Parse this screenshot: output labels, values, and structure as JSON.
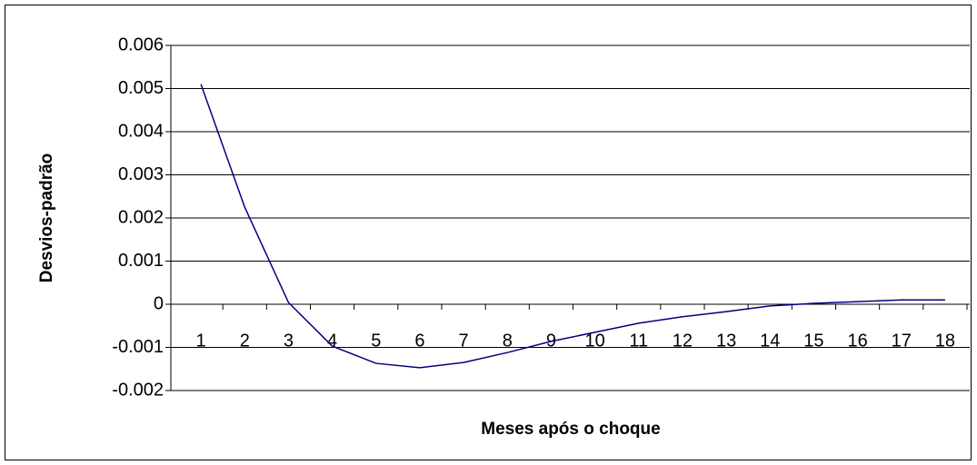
{
  "chart_data": {
    "type": "line",
    "x_label": "Meses após o choque",
    "y_label": "Desvios-padrão",
    "categories": [
      "1",
      "2",
      "3",
      "4",
      "5",
      "6",
      "7",
      "8",
      "9",
      "10",
      "11",
      "12",
      "13",
      "14",
      "15",
      "16",
      "17",
      "18"
    ],
    "values": [
      0.0051,
      0.00225,
      4e-05,
      -0.00097,
      -0.00137,
      -0.00147,
      -0.00135,
      -0.00112,
      -0.00086,
      -0.00065,
      -0.00044,
      -0.00029,
      -0.00017,
      -4e-05,
      2e-05,
      6e-05,
      0.0001,
      0.0001
    ],
    "color": "#000080",
    "ylim": [
      -0.002,
      0.006
    ],
    "yticks": [
      -0.002,
      -0.001,
      0,
      0.001,
      0.002,
      0.003,
      0.004,
      0.005,
      0.006
    ],
    "grid": true
  }
}
